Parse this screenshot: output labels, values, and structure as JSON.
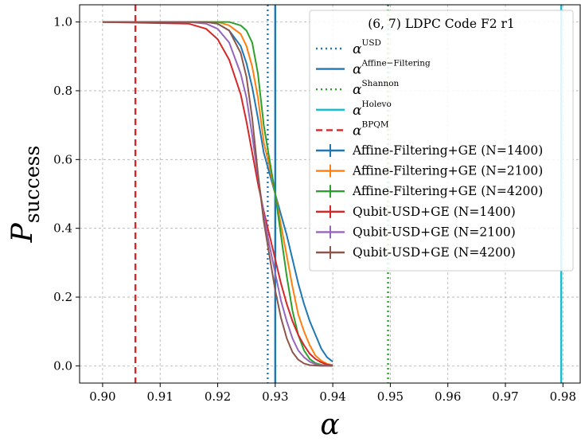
{
  "chart_data": {
    "type": "line",
    "legend_title": "(6, 7) LDPC Code F2 r1",
    "xlabel": "α",
    "ylabel": {
      "main": "P",
      "sub": "success"
    },
    "xlim": [
      0.896,
      0.983
    ],
    "ylim": [
      -0.05,
      1.05
    ],
    "xticks": [
      0.9,
      0.91,
      0.92,
      0.93,
      0.94,
      0.95,
      0.96,
      0.97,
      0.98
    ],
    "xtick_labels": [
      "0.90",
      "0.91",
      "0.92",
      "0.93",
      "0.94",
      "0.95",
      "0.96",
      "0.97",
      "0.98"
    ],
    "yticks": [
      0.0,
      0.2,
      0.4,
      0.6,
      0.8,
      1.0
    ],
    "ytick_labels": [
      "0.0",
      "0.2",
      "0.4",
      "0.6",
      "0.8",
      "1.0"
    ],
    "grid": true,
    "legend_position": "top-right",
    "vlines": [
      {
        "name": "USD",
        "x": 0.9287,
        "color": "#1f77b4",
        "style": "dotted"
      },
      {
        "name": "Affine−Filtering",
        "x": 0.93,
        "color": "#1f77b4",
        "style": "solid"
      },
      {
        "name": "Shannon",
        "x": 0.9496,
        "color": "#2ca02c",
        "style": "dotted"
      },
      {
        "name": "Holevo",
        "x": 0.9797,
        "color": "#17becf",
        "style": "solid"
      },
      {
        "name": "BPQM",
        "x": 0.9057,
        "color": "#d62728",
        "style": "dashed"
      }
    ],
    "x": [
      0.9,
      0.915,
      0.918,
      0.92,
      0.922,
      0.924,
      0.925,
      0.926,
      0.927,
      0.928,
      0.929,
      0.93,
      0.931,
      0.932,
      0.933,
      0.934,
      0.935,
      0.936,
      0.937,
      0.938,
      0.939,
      0.94
    ],
    "series": [
      {
        "name": "Affine-Filtering+GE (N=1400)",
        "color": "#1f77b4",
        "values": [
          1.0,
          1.0,
          1.0,
          0.995,
          0.975,
          0.93,
          0.88,
          0.81,
          0.72,
          0.62,
          0.56,
          0.5,
          0.44,
          0.38,
          0.31,
          0.24,
          0.18,
          0.13,
          0.09,
          0.05,
          0.025,
          0.012
        ]
      },
      {
        "name": "Affine-Filtering+GE (N=2100)",
        "color": "#ff7f0e",
        "values": [
          1.0,
          1.0,
          1.0,
          1.0,
          0.99,
          0.965,
          0.93,
          0.87,
          0.78,
          0.65,
          0.58,
          0.5,
          0.41,
          0.32,
          0.23,
          0.15,
          0.1,
          0.06,
          0.03,
          0.015,
          0.006,
          0.002
        ]
      },
      {
        "name": "Affine-Filtering+GE (N=4200)",
        "color": "#2ca02c",
        "values": [
          1.0,
          1.0,
          1.0,
          1.0,
          1.0,
          0.99,
          0.975,
          0.94,
          0.85,
          0.7,
          0.6,
          0.5,
          0.38,
          0.26,
          0.16,
          0.09,
          0.045,
          0.02,
          0.008,
          0.003,
          0.001,
          0.0
        ]
      },
      {
        "name": "Qubit-USD+GE (N=1400)",
        "color": "#d62728",
        "values": [
          1.0,
          0.995,
          0.98,
          0.95,
          0.89,
          0.79,
          0.71,
          0.62,
          0.53,
          0.45,
          0.38,
          0.31,
          0.24,
          0.18,
          0.13,
          0.09,
          0.06,
          0.035,
          0.02,
          0.01,
          0.004,
          0.001
        ]
      },
      {
        "name": "Qubit-USD+GE (N=2100)",
        "color": "#9467bd",
        "values": [
          1.0,
          1.0,
          0.995,
          0.98,
          0.94,
          0.85,
          0.78,
          0.67,
          0.55,
          0.44,
          0.35,
          0.27,
          0.19,
          0.13,
          0.08,
          0.045,
          0.025,
          0.012,
          0.005,
          0.002,
          0.001,
          0.0
        ]
      },
      {
        "name": "Qubit-USD+GE (N=4200)",
        "color": "#8c564b",
        "values": [
          1.0,
          1.0,
          1.0,
          0.995,
          0.975,
          0.91,
          0.84,
          0.72,
          0.56,
          0.42,
          0.32,
          0.22,
          0.14,
          0.08,
          0.04,
          0.018,
          0.007,
          0.002,
          0.001,
          0.0,
          0.0,
          0.0
        ]
      }
    ]
  }
}
